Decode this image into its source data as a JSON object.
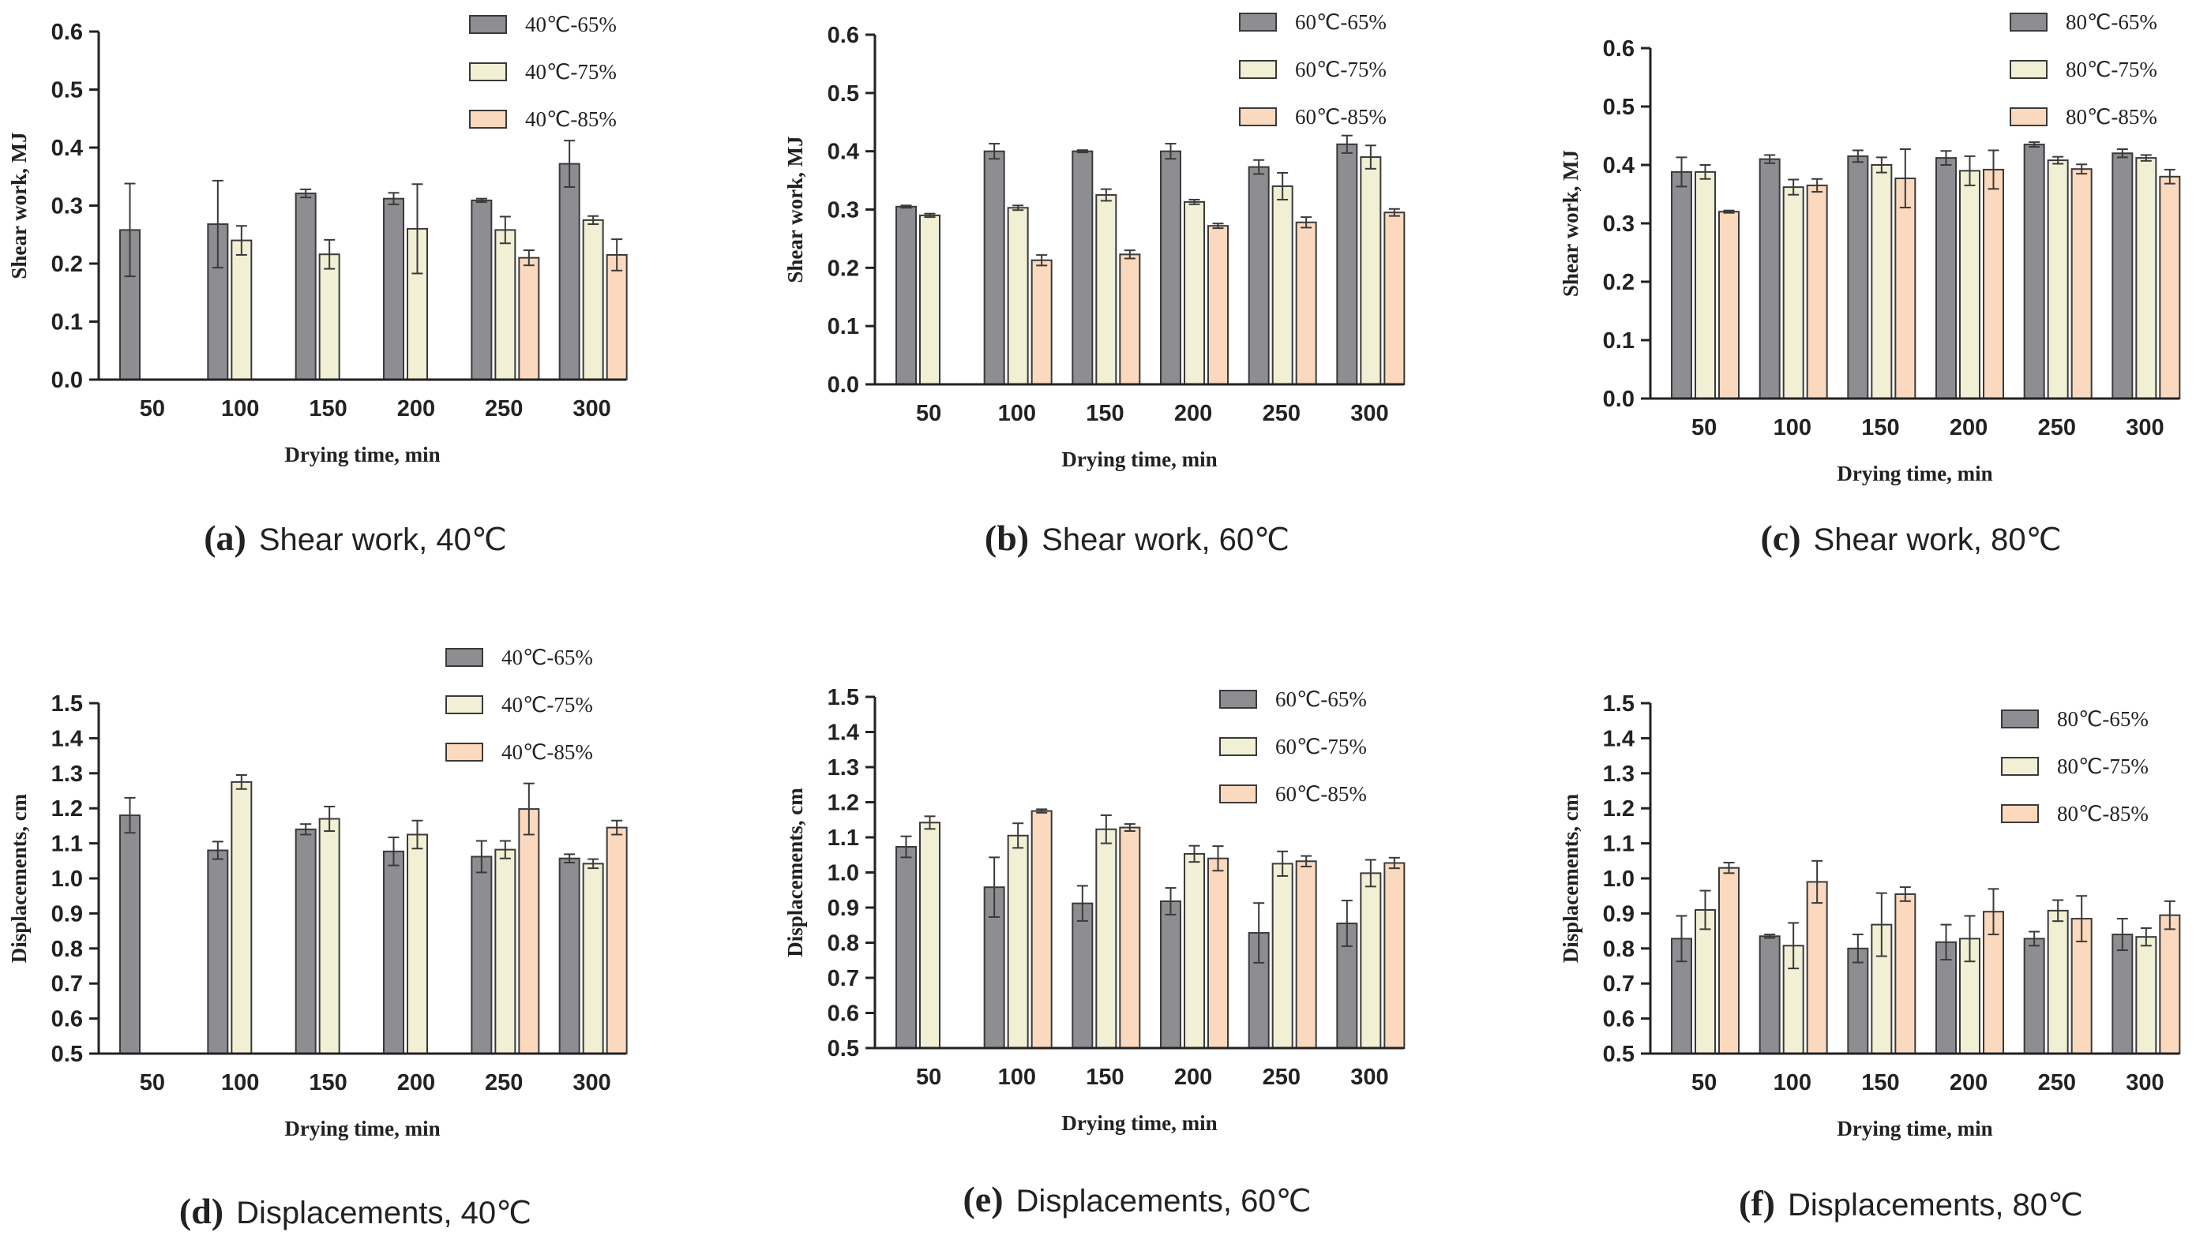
{
  "colors": {
    "series": [
      "#8e8e92",
      "#f1efd4",
      "#fbd9be"
    ],
    "bar_stroke": "#3a3a3a",
    "axis": "#222222"
  },
  "chart_data": [
    {
      "type": "bar",
      "letter": "(a)",
      "caption": "Shear work,  40℃",
      "categories": [
        "50",
        "100",
        "150",
        "200",
        "250",
        "300"
      ],
      "xlabel": "Drying time, min",
      "ylabel": "Shear work,  MJ",
      "ylim": [
        0,
        0.6
      ],
      "yticks": [
        "0.0",
        "0.1",
        "0.2",
        "0.3",
        "0.4",
        "0.5",
        "0.6"
      ],
      "series": [
        {
          "name": "40℃-65%",
          "values": [
            0.258,
            0.268,
            0.321,
            0.312,
            0.309,
            0.372
          ],
          "errors": [
            0.08,
            0.075,
            0.007,
            0.01,
            0.003,
            0.04
          ]
        },
        {
          "name": "40℃-75%",
          "values": [
            0,
            0.24,
            0.216,
            0.26,
            0.258,
            0.275
          ],
          "errors": [
            0,
            0.025,
            0.025,
            0.077,
            0.023,
            0.007
          ]
        },
        {
          "name": "40℃-85%",
          "values": [
            0,
            0,
            0,
            0,
            0.21,
            0.215
          ],
          "errors": [
            0,
            0,
            0,
            0,
            0.013,
            0.027
          ]
        }
      ]
    },
    {
      "type": "bar",
      "letter": "(b)",
      "caption": "Shear work,  60℃",
      "categories": [
        "50",
        "100",
        "150",
        "200",
        "250",
        "300"
      ],
      "xlabel": "Drying time, min",
      "ylabel": "Shear work,  MJ",
      "ylim": [
        0,
        0.6
      ],
      "yticks": [
        "0.0",
        "0.1",
        "0.2",
        "0.3",
        "0.4",
        "0.5",
        "0.6"
      ],
      "series": [
        {
          "name": "60℃-65%",
          "values": [
            0.305,
            0.4,
            0.4,
            0.4,
            0.373,
            0.412
          ],
          "errors": [
            0.002,
            0.013,
            0.002,
            0.013,
            0.012,
            0.015
          ]
        },
        {
          "name": "60℃-75%",
          "values": [
            0.29,
            0.303,
            0.325,
            0.313,
            0.34,
            0.39
          ],
          "errors": [
            0.003,
            0.004,
            0.01,
            0.004,
            0.023,
            0.02
          ]
        },
        {
          "name": "60℃-85%",
          "values": [
            0,
            0.213,
            0.223,
            0.272,
            0.278,
            0.295
          ],
          "errors": [
            0,
            0.009,
            0.007,
            0.004,
            0.009,
            0.006
          ]
        }
      ]
    },
    {
      "type": "bar",
      "letter": "(c)",
      "caption": "Shear work,  80℃",
      "categories": [
        "50",
        "100",
        "150",
        "200",
        "250",
        "300"
      ],
      "xlabel": "Drying time, min",
      "ylabel": "Shear work,  MJ",
      "ylim": [
        0,
        0.6
      ],
      "yticks": [
        "0.0",
        "0.1",
        "0.2",
        "0.3",
        "0.4",
        "0.5",
        "0.6"
      ],
      "series": [
        {
          "name": "80℃-65%",
          "values": [
            0.388,
            0.41,
            0.415,
            0.412,
            0.435,
            0.42
          ],
          "errors": [
            0.025,
            0.007,
            0.01,
            0.012,
            0.004,
            0.007
          ]
        },
        {
          "name": "80℃-75%",
          "values": [
            0.388,
            0.362,
            0.4,
            0.39,
            0.408,
            0.412
          ],
          "errors": [
            0.012,
            0.013,
            0.013,
            0.025,
            0.006,
            0.005
          ]
        },
        {
          "name": "80℃-85%",
          "values": [
            0.32,
            0.365,
            0.377,
            0.392,
            0.393,
            0.38
          ],
          "errors": [
            0.002,
            0.011,
            0.05,
            0.033,
            0.008,
            0.012
          ]
        }
      ]
    },
    {
      "type": "bar",
      "letter": "(d)",
      "caption": "Displacements,  40℃",
      "categories": [
        "50",
        "100",
        "150",
        "200",
        "250",
        "300"
      ],
      "xlabel": "Drying time, min",
      "ylabel": "Displacements,  cm",
      "ylim": [
        0.5,
        1.5
      ],
      "yticks": [
        "0.5",
        "0.6",
        "0.7",
        "0.8",
        "0.9",
        "1.0",
        "1.1",
        "1.2",
        "1.3",
        "1.4",
        "1.5"
      ],
      "series": [
        {
          "name": "40℃-65%",
          "values": [
            1.18,
            1.08,
            1.14,
            1.077,
            1.062,
            1.057
          ],
          "errors": [
            0.05,
            0.025,
            0.015,
            0.04,
            0.045,
            0.012
          ]
        },
        {
          "name": "40℃-75%",
          "values": [
            0.5,
            1.275,
            1.17,
            1.125,
            1.082,
            1.042
          ],
          "errors": [
            0,
            0.02,
            0.035,
            0.04,
            0.025,
            0.013
          ]
        },
        {
          "name": "40℃-85%",
          "values": [
            0.5,
            0.5,
            0.5,
            0.5,
            1.198,
            1.145
          ],
          "errors": [
            0,
            0,
            0,
            0,
            0.073,
            0.02
          ]
        }
      ]
    },
    {
      "type": "bar",
      "letter": "(e)",
      "caption": "Displacements,  60℃",
      "categories": [
        "50",
        "100",
        "150",
        "200",
        "250",
        "300"
      ],
      "xlabel": "Drying time, min",
      "ylabel": "Displacements,  cm",
      "ylim": [
        0.5,
        1.5
      ],
      "yticks": [
        "0.5",
        "0.6",
        "0.7",
        "0.8",
        "0.9",
        "1.0",
        "1.1",
        "1.2",
        "1.3",
        "1.4",
        "1.5"
      ],
      "series": [
        {
          "name": "60℃-65%",
          "values": [
            1.073,
            0.958,
            0.912,
            0.918,
            0.828,
            0.855
          ],
          "errors": [
            0.03,
            0.085,
            0.05,
            0.038,
            0.085,
            0.065
          ]
        },
        {
          "name": "60℃-75%",
          "values": [
            1.142,
            1.105,
            1.123,
            1.053,
            1.025,
            0.998
          ],
          "errors": [
            0.018,
            0.035,
            0.04,
            0.023,
            0.035,
            0.038
          ]
        },
        {
          "name": "60℃-85%",
          "values": [
            0.5,
            1.175,
            1.128,
            1.04,
            1.032,
            1.027
          ],
          "errors": [
            0,
            0.005,
            0.01,
            0.035,
            0.015,
            0.015
          ]
        }
      ]
    },
    {
      "type": "bar",
      "letter": "(f)",
      "caption": "Displacements,  80℃",
      "categories": [
        "50",
        "100",
        "150",
        "200",
        "250",
        "300"
      ],
      "xlabel": "Drying time, min",
      "ylabel": "Displacements,  cm",
      "ylim": [
        0.5,
        1.5
      ],
      "yticks": [
        "0.5",
        "0.6",
        "0.7",
        "0.8",
        "0.9",
        "1.0",
        "1.1",
        "1.2",
        "1.3",
        "1.4",
        "1.5"
      ],
      "series": [
        {
          "name": "80℃-65%",
          "values": [
            0.828,
            0.835,
            0.8,
            0.818,
            0.828,
            0.84
          ],
          "errors": [
            0.065,
            0.005,
            0.04,
            0.05,
            0.02,
            0.045
          ]
        },
        {
          "name": "80℃-75%",
          "values": [
            0.91,
            0.808,
            0.868,
            0.828,
            0.908,
            0.833
          ],
          "errors": [
            0.055,
            0.065,
            0.09,
            0.065,
            0.03,
            0.025
          ]
        },
        {
          "name": "80℃-85%",
          "values": [
            1.03,
            0.99,
            0.955,
            0.905,
            0.885,
            0.895
          ],
          "errors": [
            0.015,
            0.06,
            0.02,
            0.065,
            0.065,
            0.04
          ]
        }
      ]
    }
  ]
}
